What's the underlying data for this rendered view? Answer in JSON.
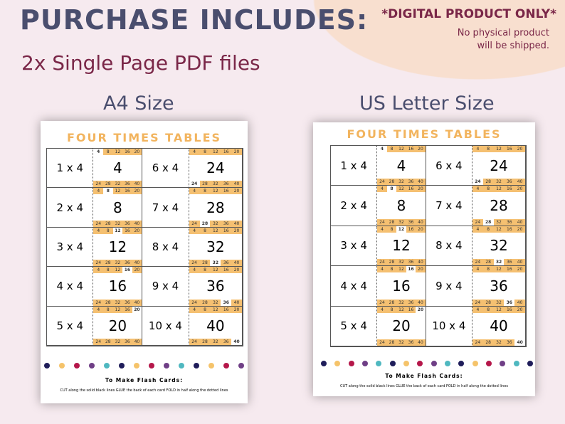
{
  "header": {
    "title": "PURCHASE INCLUDES:",
    "subtitle": "2x  Single Page PDF files",
    "digital": "*DIGITAL PRODUCT ONLY*",
    "note_line1": "No physical product",
    "note_line2": "will be shipped."
  },
  "labels": {
    "a4": "A4 Size",
    "letter": "US Letter Size"
  },
  "sheet": {
    "title": "FOUR TIMES TABLES",
    "cards": [
      {
        "q": "1 x 4",
        "a": "4"
      },
      {
        "q": "6 x 4",
        "a": "24"
      },
      {
        "q": "2 x 4",
        "a": "8"
      },
      {
        "q": "7 x 4",
        "a": "28"
      },
      {
        "q": "3 x 4",
        "a": "12"
      },
      {
        "q": "8 x 4",
        "a": "32"
      },
      {
        "q": "4 x 4",
        "a": "16"
      },
      {
        "q": "9 x 4",
        "a": "36"
      },
      {
        "q": "5 x 4",
        "a": "20"
      },
      {
        "q": "10 x 4",
        "a": "40"
      }
    ],
    "strip_top": [
      "4",
      "8",
      "12",
      "16",
      "20"
    ],
    "strip_bottom": [
      "24",
      "28",
      "32",
      "36",
      "40"
    ],
    "instructions_title": "To Make Flash Cards:",
    "instructions": "CUT along the solid black lines   GLUE the back of each card   FOLD in half along the dotted lines",
    "dot_colors": [
      "#1f1d5a",
      "#f5c36a",
      "#b5174a",
      "#6f3f86",
      "#4fb8c0"
    ]
  }
}
